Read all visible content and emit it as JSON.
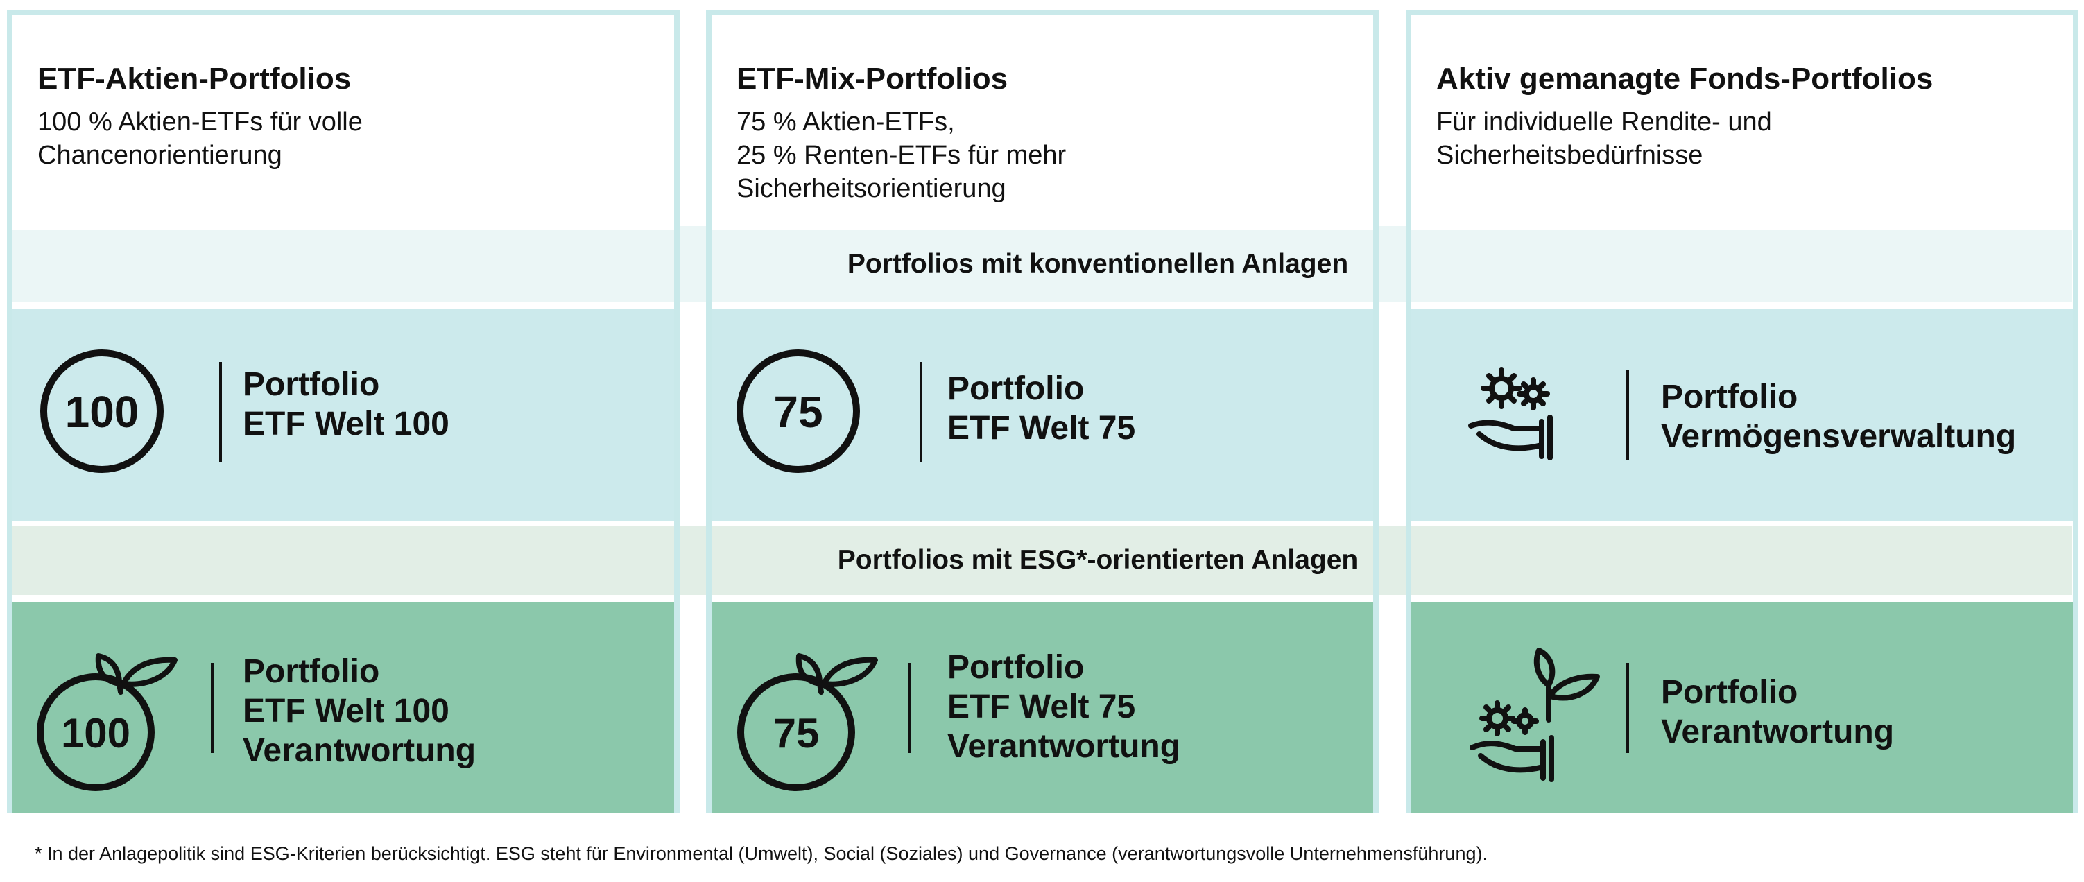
{
  "bands": {
    "conventional": "Portfolios mit konventionellen Anlagen",
    "esg": "Portfolios mit ESG*-orientierten Anlagen"
  },
  "columns": [
    {
      "title": "ETF-Aktien-Portfolios",
      "description": "100 % Aktien-ETFs für volle\nChancenorientierung",
      "conventional": {
        "label": "Portfolio\nETF Welt 100",
        "icon": "circle-100-icon",
        "icon_text": "100"
      },
      "esg": {
        "label": "Portfolio\nETF Welt 100\nVerantwortung",
        "icon": "leaf-circle-100-icon",
        "icon_text": "100"
      }
    },
    {
      "title": "ETF-Mix-Portfolios",
      "description": "75 % Aktien-ETFs,\n25 % Renten-ETFs für mehr\nSicherheitsorientierung",
      "conventional": {
        "label": "Portfolio\nETF Welt 75",
        "icon": "circle-75-icon",
        "icon_text": "75"
      },
      "esg": {
        "label": "Portfolio\nETF Welt 75\nVerantwortung",
        "icon": "leaf-circle-75-icon",
        "icon_text": "75"
      }
    },
    {
      "title": "Aktiv gemanagte Fonds-Portfolios",
      "description": "Für individuelle Rendite- und\nSicherheitsbedürfnisse",
      "conventional": {
        "label": "Portfolio\nVermögensverwaltung",
        "icon": "hand-gears-icon"
      },
      "esg": {
        "label": "Portfolio\nVerantwortung",
        "icon": "hand-gears-plant-icon"
      }
    }
  ],
  "footnote": "* In der Anlagepolitik sind ESG-Kriterien berücksichtigt. ESG steht für Environmental (Umwelt), Social (Soziales) und Governance (verantwortungsvolle Unternehmensführung).",
  "colors": {
    "border": "#c9e9ea",
    "conventional_tile": "#cceaec",
    "conventional_band": "#ebf6f6",
    "esg_tile": "#8bc8ab",
    "esg_band": "#e2eee6"
  }
}
